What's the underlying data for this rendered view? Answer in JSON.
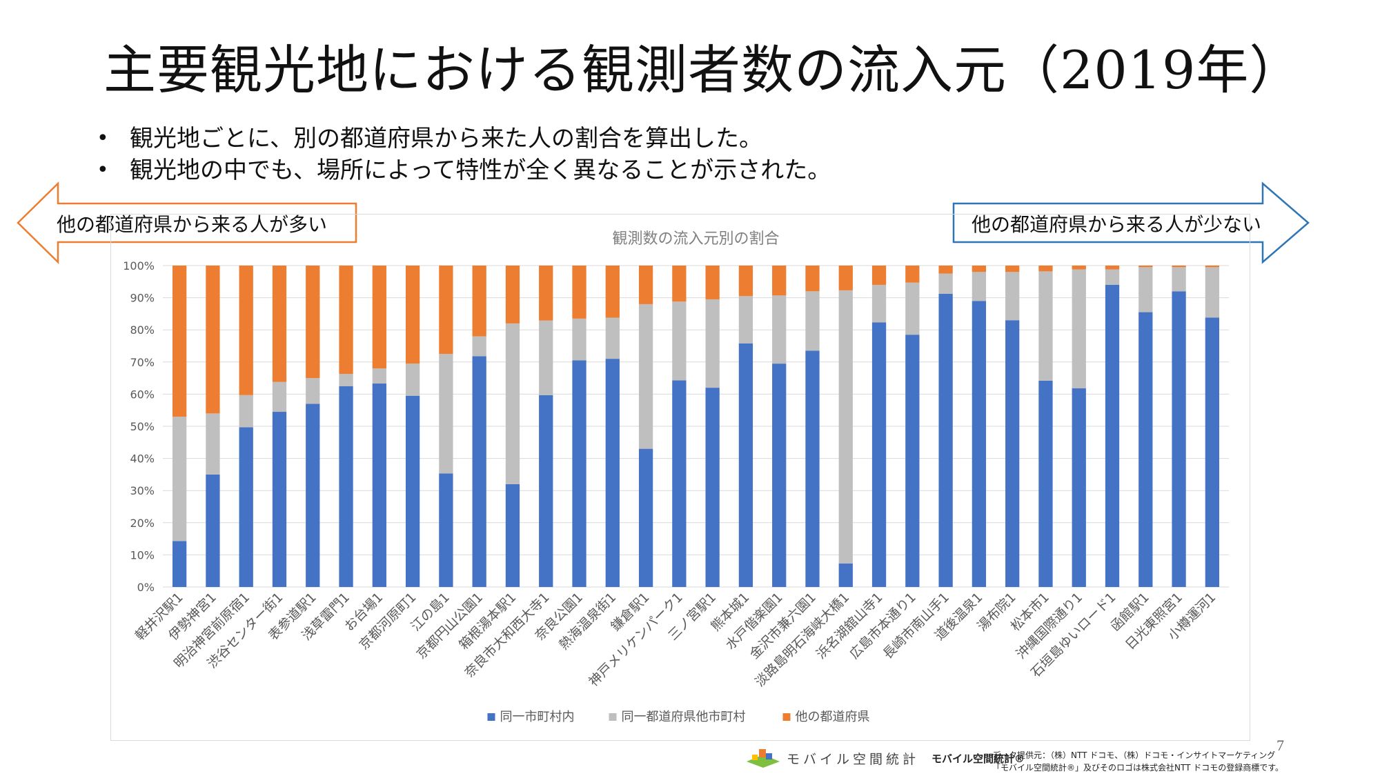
{
  "slide": {
    "title": "主要観光地における観測者数の流入元（2019年）",
    "bullets": [
      "観光地ごとに、別の都道府県から来た人の割合を算出した。",
      "観光地の中でも、場所によって特性が全く異なることが示された。"
    ],
    "bullet_symbol": "•",
    "arrow_left_label": "他の都道府県から来る人が多い",
    "arrow_right_label": "他の都道府県から来る人が少ない",
    "page_number": "7",
    "footer": {
      "logo_text": "モバイル空間統計",
      "logo_bold": "モバイル空間統計®",
      "credit_line1": "データ提供元：（株）NTT ドコモ、（株）ドコモ・インサイトマーケティング",
      "credit_line2": "「モバイル空間統計®」及びそのロゴは株式会社NTT ドコモの登録商標です。"
    },
    "colors": {
      "arrow_left": "#ED7D31",
      "arrow_right": "#2E75B6"
    }
  },
  "chart_data": {
    "type": "bar",
    "stacked": true,
    "title": "観測数の流入元別の割合",
    "categories": [
      "軽井沢駅1",
      "伊勢神宮1",
      "明治神宮前原宿1",
      "渋谷センター街1",
      "表参道駅1",
      "浅草雷門1",
      "お台場1",
      "京都河原町1",
      "江の島1",
      "京都円山公園1",
      "箱根湯本駅1",
      "奈良市大和西大寺1",
      "奈良公園1",
      "熱海温泉街1",
      "鎌倉駅1",
      "神戸メリケンパーク1",
      "三ノ宮駅1",
      "熊本城1",
      "水戸偕楽園1",
      "金沢市兼六園1",
      "淡路島明石海峡大橋1",
      "浜名湖舘山寺1",
      "広島市本通り1",
      "長崎市南山手1",
      "道後温泉1",
      "湯布院1",
      "松本市1",
      "沖縄国際通り1",
      "石垣島ゆいロード1",
      "函館駅1",
      "日光東照宮1",
      "小樽運河1"
    ],
    "series": [
      {
        "name": "同一市町村内",
        "color": "#4472C4",
        "values": [
          14.3,
          35,
          49.7,
          54.5,
          57,
          62.5,
          63.3,
          59.5,
          35.3,
          71.8,
          32,
          59.7,
          70.5,
          71,
          43,
          64.3,
          62,
          75.8,
          69.5,
          73.5,
          7.3,
          82.3,
          78.5,
          91.2,
          89,
          83,
          64.2,
          61.8,
          94,
          85.5,
          92,
          83.8
        ]
      },
      {
        "name": "同一都道府県他市町村",
        "color": "#BFBFBF",
        "values": [
          38.7,
          19,
          10,
          9.3,
          8,
          3.8,
          4.7,
          10,
          37.2,
          6.2,
          50,
          23.2,
          13,
          12.8,
          45,
          24.5,
          27.5,
          14.7,
          21.2,
          18.5,
          85,
          11.7,
          16.2,
          6.3,
          9,
          15,
          34,
          37,
          4.8,
          14,
          7.5,
          15.7
        ]
      },
      {
        "name": "他の都道府県",
        "color": "#ED7D31",
        "values": [
          47,
          46,
          40.3,
          36.2,
          35,
          33.7,
          32,
          30.5,
          27.5,
          22,
          18,
          17.1,
          16.5,
          16.2,
          12,
          11.2,
          10.5,
          9.5,
          9.3,
          8,
          7.7,
          6,
          5.3,
          2.5,
          2,
          2,
          1.8,
          1.2,
          1.2,
          0.5,
          0.5,
          0.5
        ]
      }
    ],
    "ylim": [
      0,
      100
    ],
    "yticks": [
      "0%",
      "10%",
      "20%",
      "30%",
      "40%",
      "50%",
      "60%",
      "70%",
      "80%",
      "90%",
      "100%"
    ],
    "grid": true,
    "legend_position": "bottom"
  }
}
